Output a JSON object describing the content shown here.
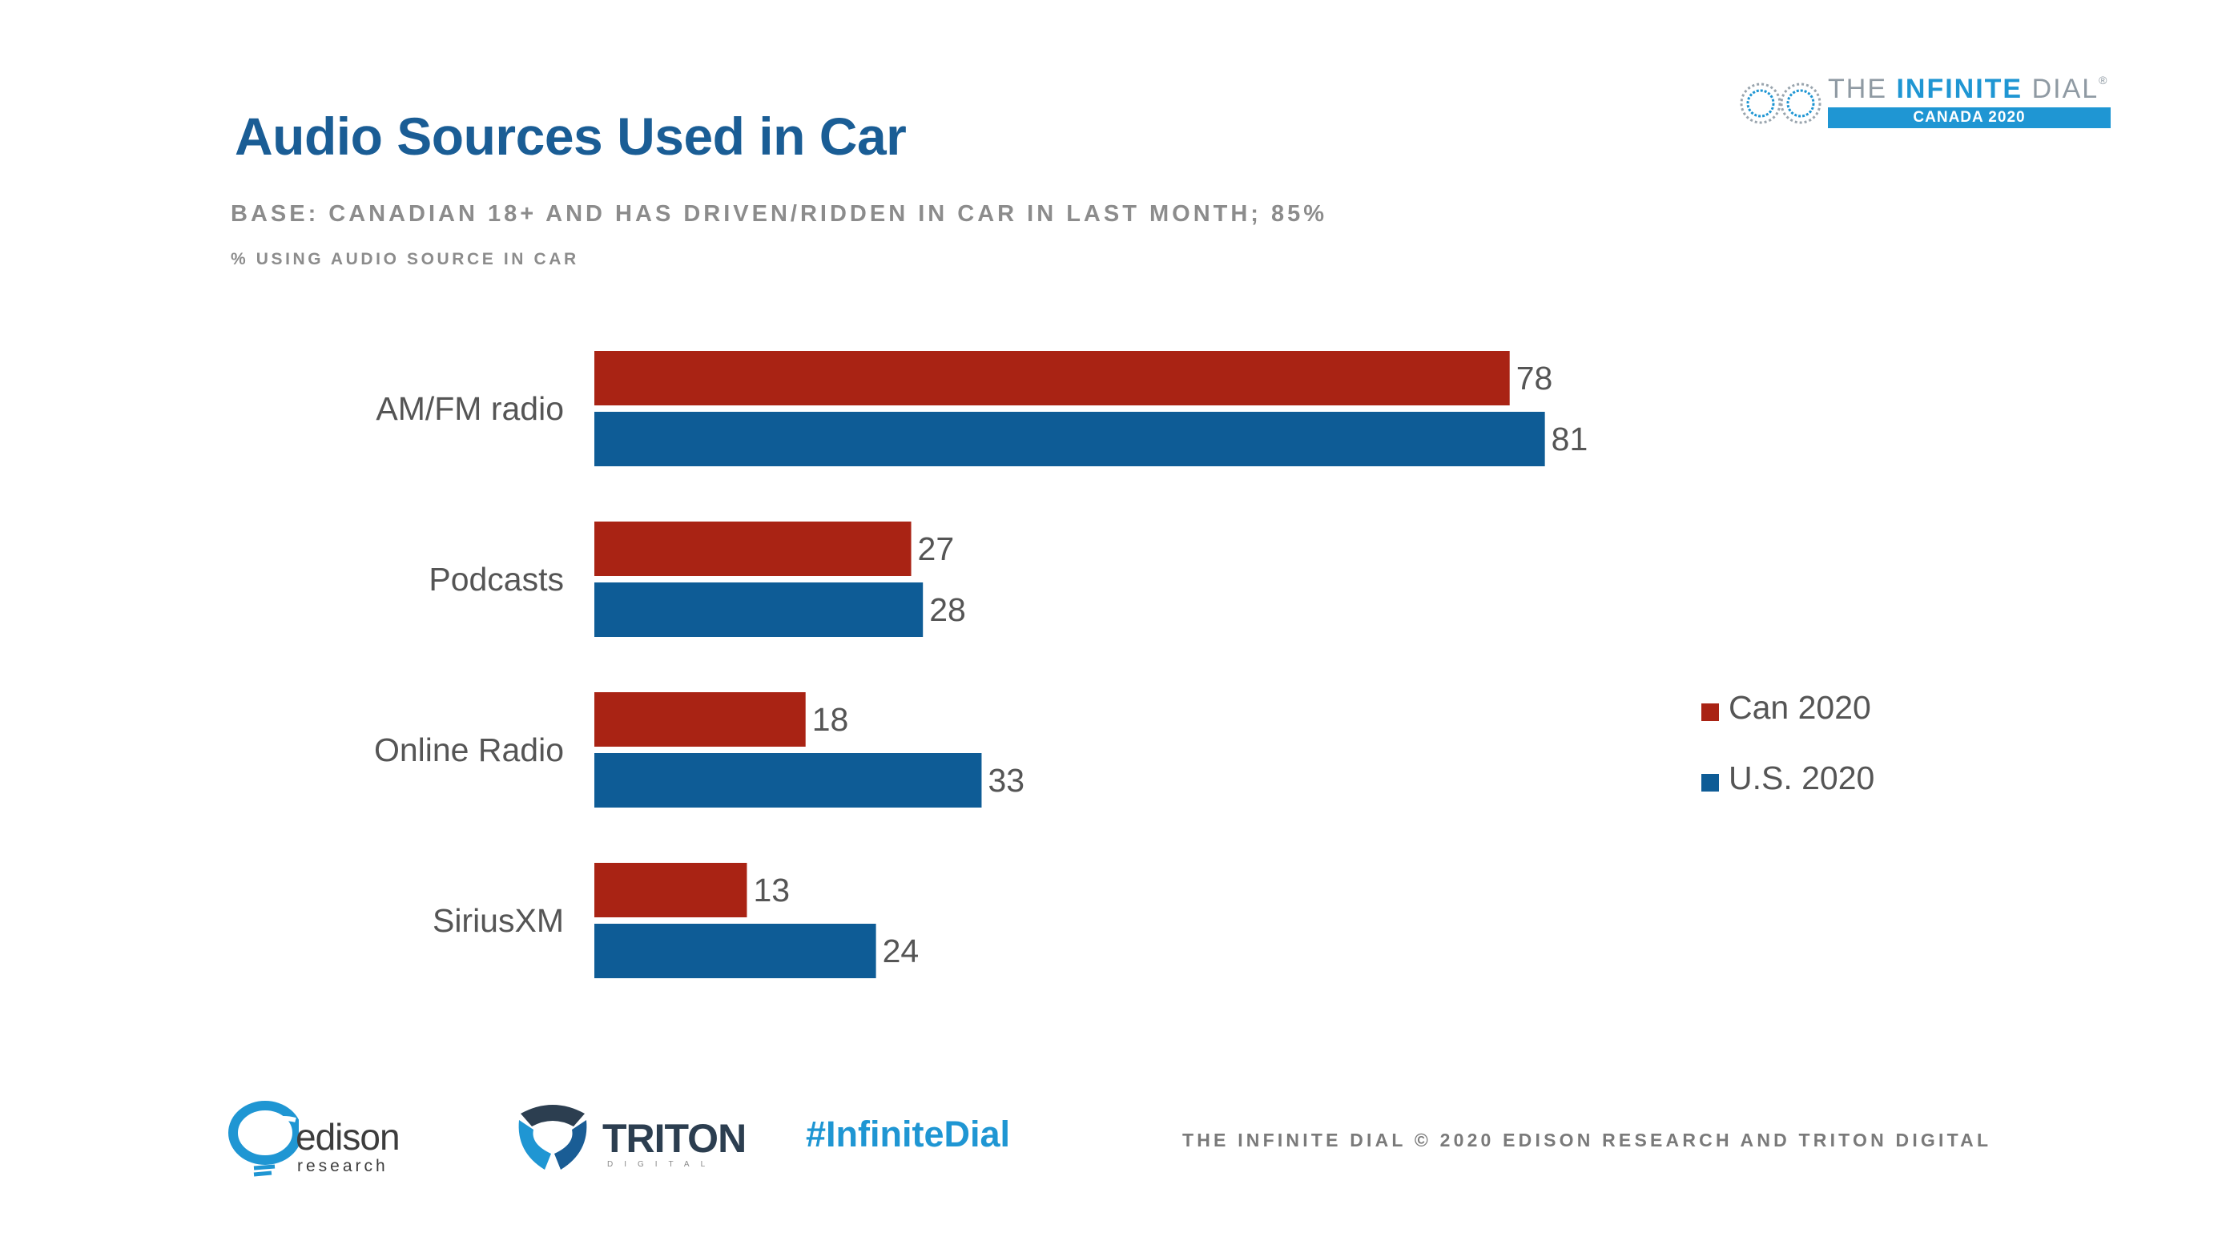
{
  "header": {
    "title": "Audio Sources Used in Car",
    "subtitle": "BASE: CANADIAN 18+ AND HAS DRIVEN/RIDDEN IN CAR IN LAST MONTH; 85%",
    "caption": "% USING AUDIO SOURCE IN CAR"
  },
  "brand": {
    "prefix": "THE ",
    "strong": "INFINITE",
    "suffix": " DIAL",
    "reg": "®",
    "sub": "CANADA 2020"
  },
  "colors": {
    "can": "#a92314",
    "us": "#0e5c96",
    "title": "#1a5d95",
    "accent": "#1f96d3"
  },
  "chart_data": {
    "type": "bar",
    "orientation": "horizontal",
    "title": "Audio Sources Used in Car",
    "xlabel": "% USING AUDIO SOURCE IN CAR",
    "ylabel": "",
    "categories": [
      "AM/FM radio",
      "Podcasts",
      "Online Radio",
      "SiriusXM"
    ],
    "series": [
      {
        "name": "Can 2020",
        "values": [
          78,
          27,
          18,
          13
        ],
        "color": "#a92314"
      },
      {
        "name": "U.S. 2020",
        "values": [
          81,
          28,
          33,
          24
        ],
        "color": "#0e5c96"
      }
    ],
    "xlim": [
      0,
      100
    ],
    "grid": false,
    "legend_position": "right"
  },
  "footer": {
    "edison_word": "edison",
    "edison_sub": "research",
    "triton_word": "TRITON",
    "triton_sub": "DIGITAL",
    "hashtag": "#InfiniteDial",
    "credit": "THE INFINITE DIAL   © 2020 EDISON RESEARCH AND TRITON DIGITAL"
  }
}
